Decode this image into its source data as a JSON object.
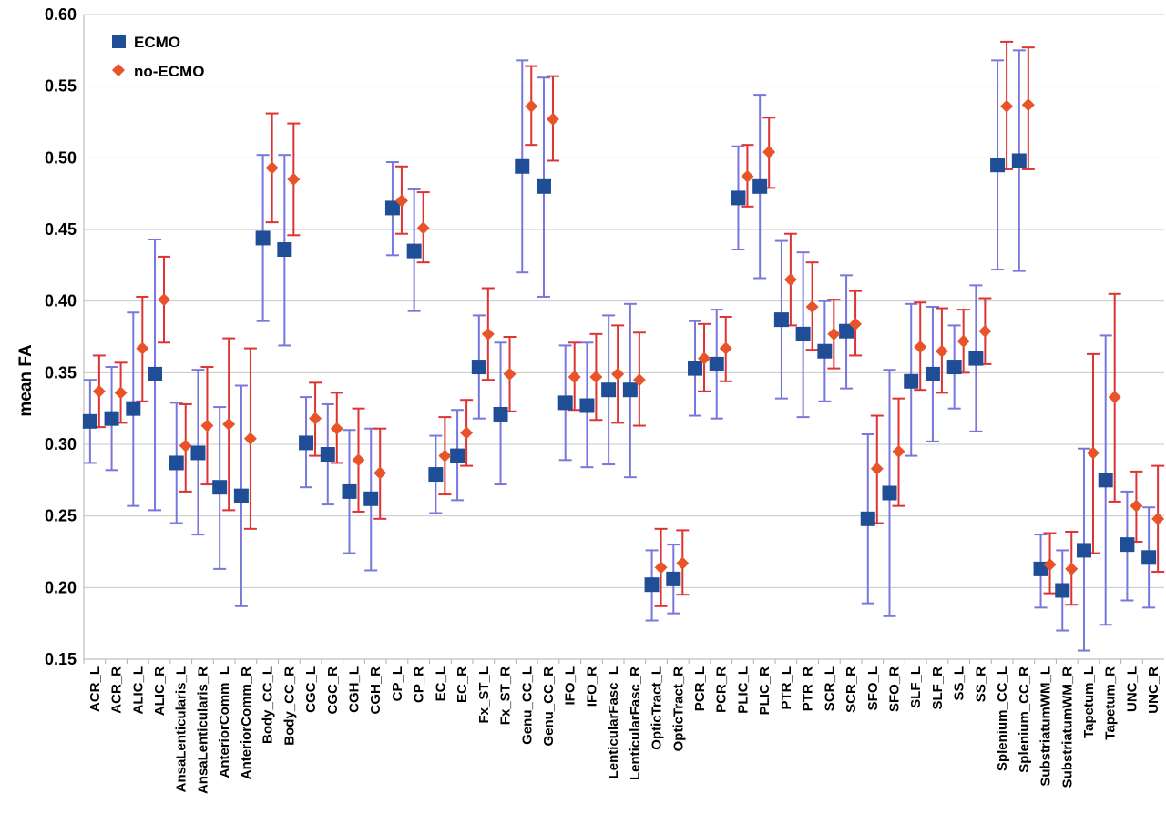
{
  "chart_data": {
    "type": "scatter",
    "ylabel": "mean FA",
    "xlabel": "",
    "ylim": [
      0.15,
      0.6
    ],
    "yticks": [
      "0.15",
      "0.20",
      "0.25",
      "0.30",
      "0.35",
      "0.40",
      "0.45",
      "0.50",
      "0.55",
      "0.60"
    ],
    "grid": "horizontal",
    "legend_position": "top-left",
    "categories": [
      "ACR_L",
      "ACR_R",
      "ALIC_L",
      "ALIC_R",
      "AnsaLenticularis_L",
      "AnsaLenticularis_R",
      "AnteriorComm_L",
      "AnteriorComm_R",
      "Body_CC_L",
      "Body_CC_R",
      "CGC_L",
      "CGC_R",
      "CGH_L",
      "CGH_R",
      "CP_L",
      "CP_R",
      "EC_L",
      "EC_R",
      "Fx_ST_L",
      "Fx_ST_R",
      "Genu_CC_L",
      "Genu_CC_R",
      "IFO_L",
      "IFO_R",
      "LenticularFasc_L",
      "LenticularFasc_R",
      "OpticTract_L",
      "OpticTract_R",
      "PCR_L",
      "PCR_R",
      "PLIC_L",
      "PLIC_R",
      "PTR_L",
      "PTR_R",
      "SCR_L",
      "SCR_R",
      "SFO_L",
      "SFO_R",
      "SLF_L",
      "SLF_R",
      "SS_L",
      "SS_R",
      "Splenium_CC_L",
      "Splenium_CC_R",
      "SubstriatumWM_L",
      "SubstriatumWM_R",
      "Tapetum_L",
      "Tapetum_R",
      "UNC_L",
      "UNC_R"
    ],
    "series": [
      {
        "name": "ECMO",
        "color": "#1f4e96",
        "marker": "square",
        "errorbar_color": "#7777dd",
        "values": [
          0.316,
          0.318,
          0.325,
          0.349,
          0.287,
          0.294,
          0.27,
          0.264,
          0.444,
          0.436,
          0.301,
          0.293,
          0.267,
          0.262,
          0.465,
          0.435,
          0.279,
          0.292,
          0.354,
          0.321,
          0.494,
          0.48,
          0.329,
          0.327,
          0.338,
          0.338,
          0.202,
          0.206,
          0.353,
          0.356,
          0.472,
          0.48,
          0.387,
          0.377,
          0.365,
          0.379,
          0.248,
          0.266,
          0.344,
          0.349,
          0.354,
          0.36,
          0.495,
          0.498,
          0.213,
          0.198,
          0.226,
          0.275,
          0.23,
          0.221
        ],
        "err_low": [
          0.287,
          0.282,
          0.257,
          0.254,
          0.245,
          0.237,
          0.213,
          0.187,
          0.386,
          0.369,
          0.27,
          0.258,
          0.224,
          0.212,
          0.432,
          0.393,
          0.252,
          0.261,
          0.318,
          0.272,
          0.42,
          0.403,
          0.289,
          0.284,
          0.286,
          0.277,
          0.177,
          0.182,
          0.32,
          0.318,
          0.436,
          0.416,
          0.332,
          0.319,
          0.33,
          0.339,
          0.189,
          0.18,
          0.292,
          0.302,
          0.325,
          0.309,
          0.422,
          0.421,
          0.186,
          0.17,
          0.156,
          0.174,
          0.191,
          0.186
        ],
        "err_high": [
          0.345,
          0.354,
          0.392,
          0.443,
          0.329,
          0.352,
          0.326,
          0.341,
          0.502,
          0.502,
          0.333,
          0.328,
          0.31,
          0.311,
          0.497,
          0.478,
          0.306,
          0.324,
          0.39,
          0.371,
          0.568,
          0.556,
          0.369,
          0.371,
          0.39,
          0.398,
          0.226,
          0.23,
          0.386,
          0.394,
          0.508,
          0.544,
          0.442,
          0.434,
          0.4,
          0.418,
          0.307,
          0.352,
          0.398,
          0.396,
          0.383,
          0.411,
          0.568,
          0.575,
          0.237,
          0.226,
          0.297,
          0.376,
          0.267,
          0.256
        ]
      },
      {
        "name": "no-ECMO",
        "color": "#e8532a",
        "marker": "diamond",
        "errorbar_color": "#dd3333",
        "values": [
          0.337,
          0.336,
          0.367,
          0.401,
          0.299,
          0.313,
          0.314,
          0.304,
          0.493,
          0.485,
          0.318,
          0.311,
          0.289,
          0.28,
          0.47,
          0.451,
          0.292,
          0.308,
          0.377,
          0.349,
          0.536,
          0.527,
          0.347,
          0.347,
          0.349,
          0.345,
          0.214,
          0.217,
          0.36,
          0.367,
          0.487,
          0.504,
          0.415,
          0.396,
          0.377,
          0.384,
          0.283,
          0.295,
          0.368,
          0.365,
          0.372,
          0.379,
          0.536,
          0.537,
          0.216,
          0.213,
          0.294,
          0.333,
          0.257,
          0.248
        ],
        "err_low": [
          0.312,
          0.315,
          0.33,
          0.371,
          0.267,
          0.272,
          0.254,
          0.241,
          0.455,
          0.446,
          0.292,
          0.287,
          0.253,
          0.248,
          0.447,
          0.427,
          0.265,
          0.285,
          0.345,
          0.323,
          0.509,
          0.498,
          0.324,
          0.317,
          0.315,
          0.313,
          0.187,
          0.195,
          0.337,
          0.344,
          0.466,
          0.479,
          0.383,
          0.366,
          0.353,
          0.362,
          0.245,
          0.257,
          0.338,
          0.336,
          0.35,
          0.356,
          0.492,
          0.492,
          0.196,
          0.188,
          0.224,
          0.26,
          0.232,
          0.211
        ],
        "err_high": [
          0.362,
          0.357,
          0.403,
          0.431,
          0.328,
          0.354,
          0.374,
          0.367,
          0.531,
          0.524,
          0.343,
          0.336,
          0.325,
          0.311,
          0.494,
          0.476,
          0.319,
          0.331,
          0.409,
          0.375,
          0.564,
          0.557,
          0.371,
          0.377,
          0.383,
          0.378,
          0.241,
          0.24,
          0.384,
          0.389,
          0.509,
          0.528,
          0.447,
          0.427,
          0.401,
          0.407,
          0.32,
          0.332,
          0.399,
          0.395,
          0.394,
          0.402,
          0.581,
          0.577,
          0.238,
          0.239,
          0.363,
          0.405,
          0.281,
          0.285
        ]
      }
    ]
  }
}
